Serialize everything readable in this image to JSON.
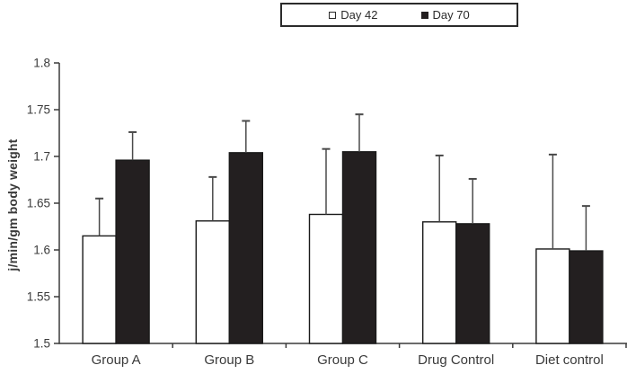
{
  "legend": {
    "items": [
      {
        "label": "Day 42",
        "swatch": "open-square-swatch"
      },
      {
        "label": "Day 70",
        "swatch": "filled-square-swatch"
      }
    ]
  },
  "colors": {
    "day42_fill": "#ffffff",
    "day70_fill": "#231f20",
    "axis": "#3a3a3a",
    "bar_border": "#1a1a1a",
    "error_bar": "#4a4a4a",
    "text": "#3a3a3a",
    "background": "#ffffff"
  },
  "chart_data": {
    "type": "bar",
    "title": "",
    "xlabel": "",
    "ylabel": "j/min/gm body weight",
    "categories": [
      "Group A",
      "Group B",
      "Group C",
      "Drug Control",
      "Diet control"
    ],
    "series": [
      {
        "name": "Day 42",
        "fill": "#ffffff",
        "values": [
          1.615,
          1.631,
          1.638,
          1.63,
          1.601
        ],
        "errors_up": [
          0.04,
          0.047,
          0.07,
          0.071,
          0.101
        ]
      },
      {
        "name": "Day 70",
        "fill": "#231f20",
        "values": [
          1.696,
          1.704,
          1.705,
          1.628,
          1.599
        ],
        "errors_up": [
          0.03,
          0.034,
          0.04,
          0.048,
          0.048
        ]
      }
    ],
    "ylim": [
      1.5,
      1.8
    ],
    "ytick_step": 0.05,
    "yticks": [
      "1.8",
      "1.75",
      "1.7",
      "1.65",
      "1.6",
      "1.55",
      "1.5"
    ],
    "grid": false,
    "legend_position": "top-center"
  }
}
